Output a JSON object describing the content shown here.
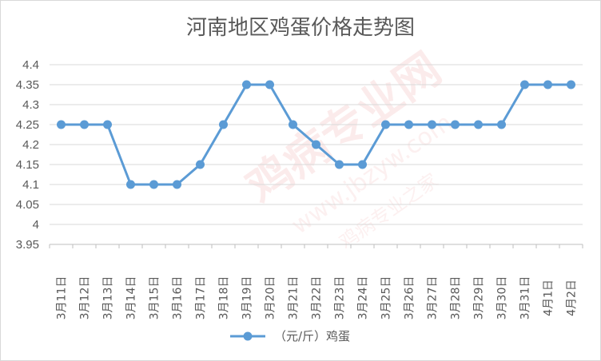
{
  "watermark": {
    "text": "鸡病专业网",
    "url": "www.jbzyw.com",
    "slogan": "鸡病专业之家"
  },
  "chart_data": {
    "type": "line",
    "title": "河南地区鸡蛋价格走势图",
    "categories": [
      "3月11日",
      "3月12日",
      "3月13日",
      "3月14日",
      "3月15日",
      "3月16日",
      "3月17日",
      "3月18日",
      "3月19日",
      "3月20日",
      "3月21日",
      "3月22日",
      "3月23日",
      "3月24日",
      "3月25日",
      "3月26日",
      "3月27日",
      "3月28日",
      "3月29日",
      "3月30日",
      "3月31日",
      "4月1日",
      "4月2日"
    ],
    "series": [
      {
        "name": "（元/斤）鸡蛋",
        "values": [
          4.25,
          4.25,
          4.25,
          4.1,
          4.1,
          4.1,
          4.15,
          4.25,
          4.35,
          4.35,
          4.25,
          4.2,
          4.15,
          4.15,
          4.25,
          4.25,
          4.25,
          4.25,
          4.25,
          4.25,
          4.35,
          4.35,
          4.35
        ],
        "color": "#5b9bd5"
      }
    ],
    "ylim": [
      3.95,
      4.4
    ],
    "yticks": [
      "4.4",
      "4.35",
      "4.3",
      "4.25",
      "4.2",
      "4.15",
      "4.1",
      "4.05",
      "4",
      "3.95"
    ],
    "grid": true,
    "legend": "bottom",
    "gridColor": "#d9d9d9"
  }
}
